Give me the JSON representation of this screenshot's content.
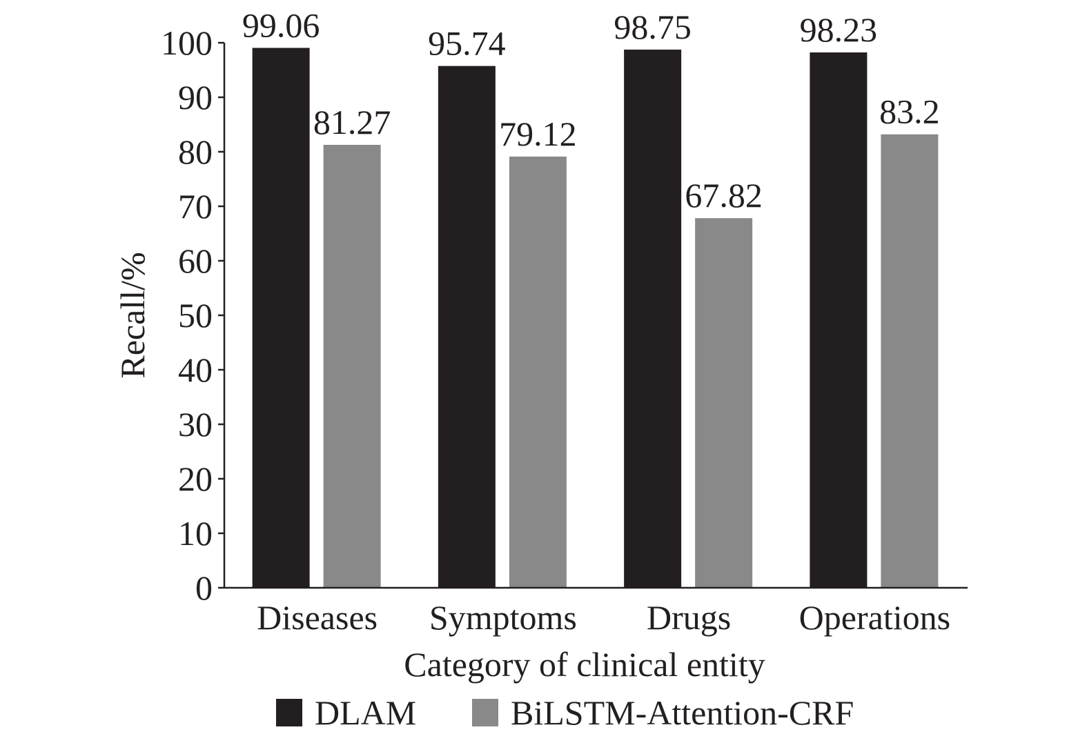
{
  "chart_data": {
    "type": "bar",
    "categories": [
      "Diseases",
      "Symptoms",
      "Drugs",
      "Operations"
    ],
    "series": [
      {
        "name": "DLAM",
        "values": [
          99.06,
          95.74,
          98.75,
          98.23
        ],
        "labels": [
          "99.06",
          "95.74",
          "98.75",
          "98.23"
        ],
        "color": "#231f20"
      },
      {
        "name": "BiLSTM-Attention-CRF",
        "values": [
          81.27,
          79.12,
          67.82,
          83.2
        ],
        "labels": [
          "81.27",
          "79.12",
          "67.82",
          "83.2"
        ],
        "color": "#898989"
      }
    ],
    "xlabel": "Category of clinical entity",
    "ylabel": "Recall/%",
    "ylim": [
      0,
      100
    ],
    "yticks": [
      "0",
      "10",
      "20",
      "30",
      "40",
      "50",
      "60",
      "70",
      "80",
      "90",
      "100"
    ],
    "grid": false,
    "legend": "bottom"
  }
}
